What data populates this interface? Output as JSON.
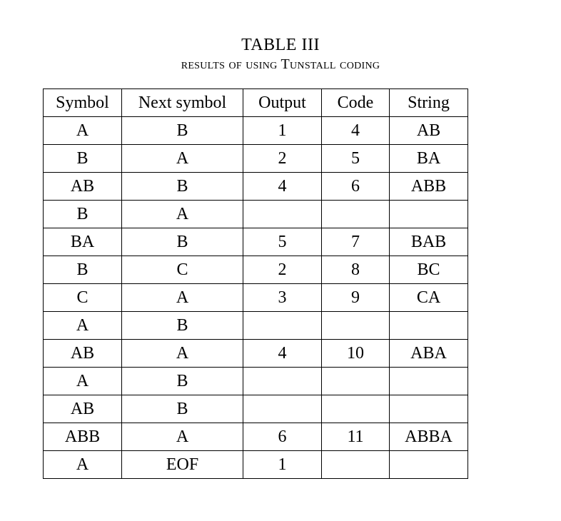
{
  "caption": {
    "number": "TABLE III",
    "title": "results of using Tunstall coding"
  },
  "table": {
    "type": "table",
    "background_color": "#ffffff",
    "border_color": "#000000",
    "text_color": "#000000",
    "font_family": "Times New Roman",
    "header_fontsize": 24,
    "cell_fontsize": 24,
    "columns": [
      "Symbol",
      "Next symbol",
      "Output",
      "Code",
      "String"
    ],
    "column_alignment": [
      "center",
      "center",
      "center",
      "center",
      "center"
    ],
    "rows": [
      [
        "A",
        "B",
        "1",
        "4",
        "AB"
      ],
      [
        "B",
        "A",
        "2",
        "5",
        "BA"
      ],
      [
        "AB",
        "B",
        "4",
        "6",
        "ABB"
      ],
      [
        "B",
        "A",
        "",
        "",
        ""
      ],
      [
        "BA",
        "B",
        "5",
        "7",
        "BAB"
      ],
      [
        "B",
        "C",
        "2",
        "8",
        "BC"
      ],
      [
        "C",
        "A",
        "3",
        "9",
        "CA"
      ],
      [
        "A",
        "B",
        "",
        "",
        ""
      ],
      [
        "AB",
        "A",
        "4",
        "10",
        "ABA"
      ],
      [
        "A",
        "B",
        "",
        "",
        ""
      ],
      [
        "AB",
        "B",
        "",
        "",
        ""
      ],
      [
        "ABB",
        "A",
        "6",
        "11",
        "ABBA"
      ],
      [
        "A",
        "EOF",
        "1",
        "",
        ""
      ]
    ]
  }
}
